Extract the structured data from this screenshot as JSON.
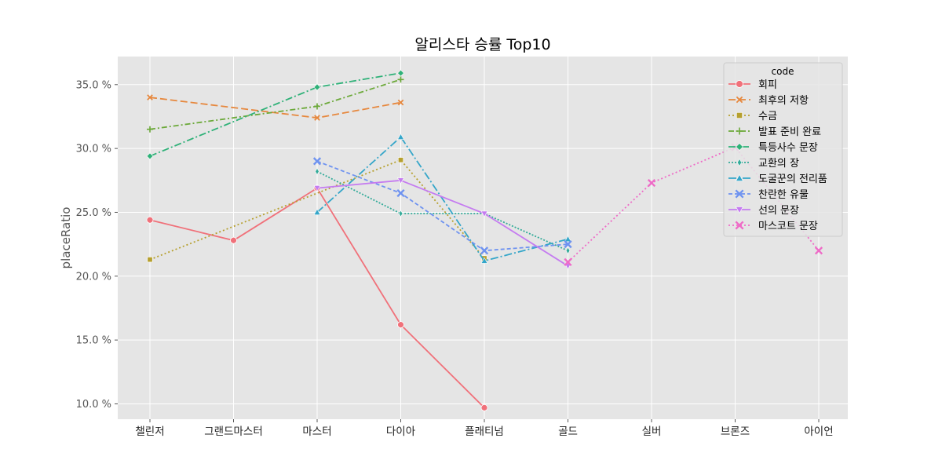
{
  "chart_data": {
    "type": "line",
    "title": "알리스타 승률 Top10",
    "xlabel": "",
    "ylabel": "placeRatio",
    "categories": [
      "챌린저",
      "그랜드마스터",
      "마스터",
      "다이아",
      "플래티넘",
      "골드",
      "실버",
      "브론즈",
      "아이언"
    ],
    "yticks": [
      10.0,
      15.0,
      20.0,
      25.0,
      30.0,
      35.0
    ],
    "ytick_labels": [
      "10.0 %",
      "15.0 %",
      "20.0 %",
      "25.0 %",
      "30.0 %",
      "35.0 %"
    ],
    "ylim": [
      8.8,
      37.2
    ],
    "grid": true,
    "legend_title": "code",
    "legend_position": "top-right",
    "series": [
      {
        "name": "회피",
        "color": "#f0717a",
        "dash": "",
        "marker": "circle",
        "values": [
          24.4,
          22.8,
          26.9,
          16.2,
          9.7,
          null,
          null,
          null,
          null
        ]
      },
      {
        "name": "최후의 저항",
        "color": "#e6883e",
        "dash": "9,4",
        "marker": "x",
        "values": [
          34.0,
          null,
          32.4,
          33.6,
          null,
          null,
          null,
          null,
          null
        ]
      },
      {
        "name": "수금",
        "color": "#b6a02f",
        "dash": "2,3",
        "marker": "square",
        "values": [
          21.3,
          null,
          null,
          29.1,
          21.4,
          null,
          null,
          null,
          null
        ]
      },
      {
        "name": "발표 준비 완료",
        "color": "#6ca93a",
        "dash": "7,3,2,3",
        "marker": "plus",
        "values": [
          31.5,
          null,
          33.3,
          35.4,
          null,
          null,
          null,
          null,
          null
        ]
      },
      {
        "name": "특등사수 문장",
        "color": "#2fb178",
        "dash": "9,3,2,3",
        "marker": "diamond",
        "values": [
          29.4,
          null,
          34.8,
          35.9,
          null,
          null,
          null,
          null,
          null
        ]
      },
      {
        "name": "교환의 장",
        "color": "#33ab99",
        "dash": "2,2",
        "marker": "thin-diamond",
        "values": [
          null,
          null,
          28.2,
          24.9,
          24.9,
          22.0,
          null,
          null,
          null
        ]
      },
      {
        "name": "도굴꾼의 전리품",
        "color": "#35a6c9",
        "dash": "10,3,2,3",
        "marker": "triangle-up",
        "values": [
          null,
          null,
          25.0,
          30.9,
          21.2,
          22.9,
          null,
          null,
          null
        ]
      },
      {
        "name": "찬란한 유물",
        "color": "#6f93f0",
        "dash": "5,3",
        "marker": "x-filled",
        "values": [
          null,
          null,
          29.0,
          26.5,
          22.0,
          22.5,
          null,
          null,
          null
        ]
      },
      {
        "name": "선의 문장",
        "color": "#c57cf0",
        "dash": "",
        "marker": "triangle-down",
        "values": [
          null,
          null,
          26.9,
          27.5,
          24.9,
          20.8,
          null,
          null,
          null
        ]
      },
      {
        "name": "마스코트 문장",
        "color": "#ee6cc7",
        "dash": "2,3",
        "marker": "x-filled",
        "values": [
          null,
          null,
          null,
          null,
          null,
          21.1,
          27.3,
          30.1,
          22.0
        ]
      }
    ]
  }
}
